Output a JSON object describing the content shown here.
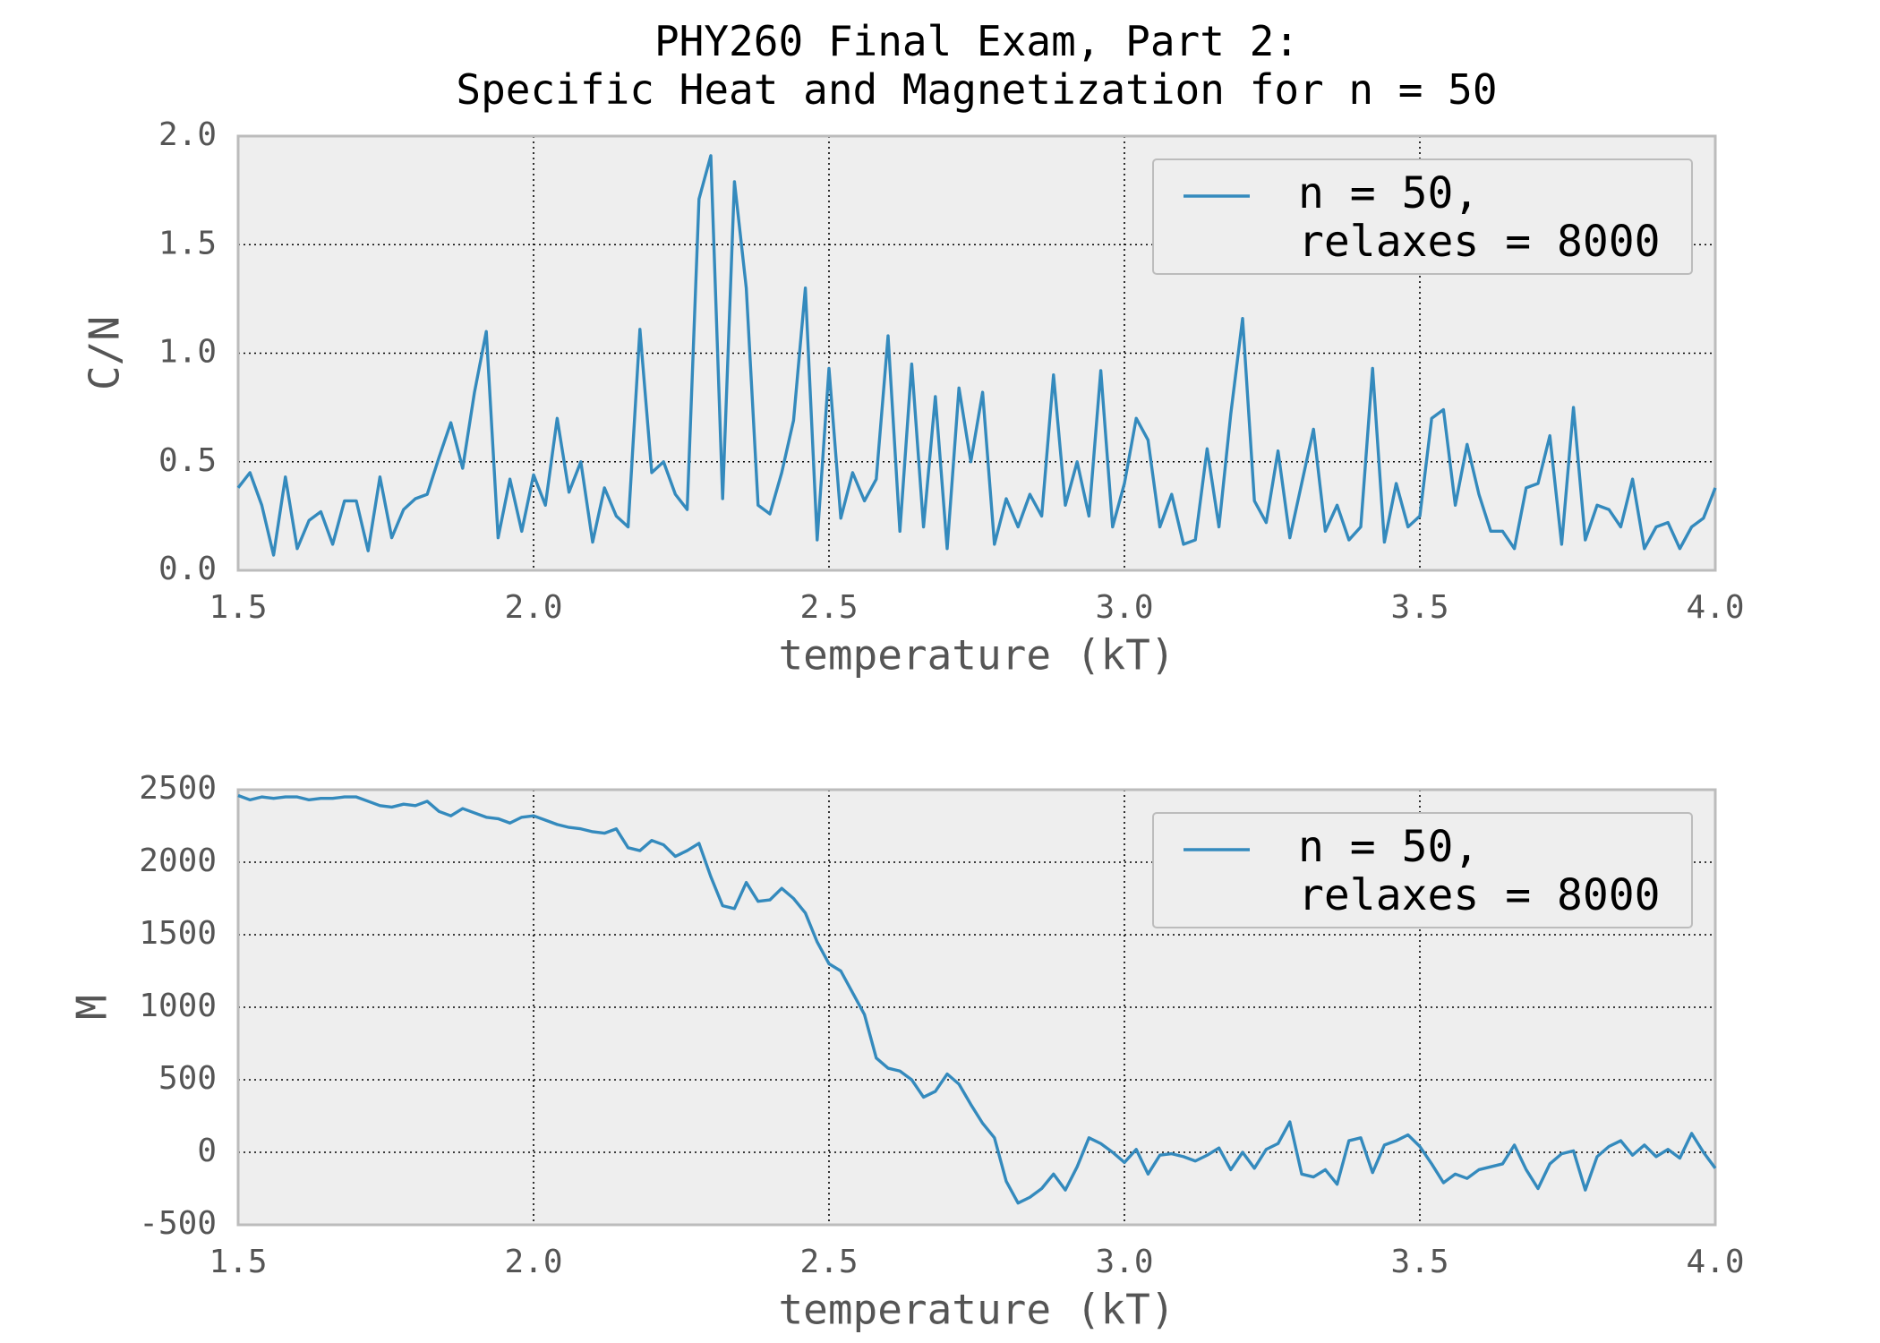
{
  "chart_data": [
    {
      "type": "line",
      "title": "PHY260 Final Exam, Part 2:\nSpecific Heat and Magnetization for n = 50",
      "xlabel": "temperature (kT)",
      "ylabel": "C/N",
      "grid": true,
      "legend": "upper right",
      "xlim": [
        1.5,
        4.0
      ],
      "ylim": [
        0,
        2.0
      ],
      "xticks": [
        1.5,
        {
          "value": 2,
          "label": "2.0"
        },
        2.5,
        {
          "value": 3,
          "label": "3.0"
        },
        3.5,
        {
          "value": 4,
          "label": "4.0"
        }
      ],
      "yticks": [
        {
          "value": 0,
          "label": "0.0"
        },
        0.5,
        {
          "value": 1,
          "label": "1.0"
        },
        1.5,
        {
          "value": 2,
          "label": "2.0"
        }
      ],
      "x": [
        1.5,
        1.52,
        1.54,
        1.56,
        1.58,
        1.6,
        1.62,
        1.64,
        1.66,
        1.68,
        1.7,
        1.72,
        1.74,
        1.76,
        1.78,
        1.8,
        1.82,
        1.84,
        1.86,
        1.88,
        1.9,
        1.92,
        1.94,
        1.96,
        1.98,
        2.0,
        2.02,
        2.04,
        2.06,
        2.08,
        2.1,
        2.12,
        2.14,
        2.16,
        2.18,
        2.2,
        2.22,
        2.24,
        2.26,
        2.28,
        2.3,
        2.32,
        2.34,
        2.36,
        2.38,
        2.4,
        2.42,
        2.44,
        2.46,
        2.48,
        2.5,
        2.52,
        2.54,
        2.56,
        2.58,
        2.6,
        2.62,
        2.64,
        2.66,
        2.68,
        2.7,
        2.72,
        2.74,
        2.76,
        2.78,
        2.8,
        2.82,
        2.84,
        2.86,
        2.88,
        2.9,
        2.92,
        2.94,
        2.96,
        2.98,
        3.0,
        3.02,
        3.04,
        3.06,
        3.08,
        3.1,
        3.12,
        3.14,
        3.16,
        3.18,
        3.2,
        3.22,
        3.24,
        3.26,
        3.28,
        3.3,
        3.32,
        3.34,
        3.36,
        3.38,
        3.4,
        3.42,
        3.44,
        3.46,
        3.48,
        3.5,
        3.52,
        3.54,
        3.56,
        3.58,
        3.6,
        3.62,
        3.64,
        3.66,
        3.68,
        3.7,
        3.72,
        3.74,
        3.76,
        3.78,
        3.8,
        3.82,
        3.84,
        3.86,
        3.88,
        3.9,
        3.92,
        3.94,
        3.96,
        3.98,
        4.0
      ],
      "series": [
        {
          "name": "n = 50,\nrelaxes = 8000",
          "color": "#348abd",
          "values": [
            0.38,
            0.45,
            0.3,
            0.07,
            0.43,
            0.1,
            0.23,
            0.27,
            0.12,
            0.32,
            0.32,
            0.09,
            0.43,
            0.15,
            0.28,
            0.33,
            0.35,
            0.52,
            0.68,
            0.47,
            0.82,
            1.1,
            0.15,
            0.42,
            0.18,
            0.44,
            0.3,
            0.7,
            0.36,
            0.5,
            0.13,
            0.38,
            0.25,
            0.2,
            1.11,
            0.45,
            0.5,
            0.35,
            0.28,
            1.71,
            1.91,
            0.33,
            1.79,
            1.3,
            0.3,
            0.26,
            0.45,
            0.69,
            1.3,
            0.14,
            0.93,
            0.24,
            0.45,
            0.32,
            0.42,
            1.08,
            0.18,
            0.95,
            0.2,
            0.8,
            0.1,
            0.84,
            0.5,
            0.82,
            0.12,
            0.33,
            0.2,
            0.35,
            0.25,
            0.9,
            0.3,
            0.5,
            0.25,
            0.92,
            0.2,
            0.4,
            0.7,
            0.6,
            0.2,
            0.35,
            0.12,
            0.14,
            0.56,
            0.2,
            0.72,
            1.16,
            0.32,
            0.22,
            0.55,
            0.15,
            0.4,
            0.65,
            0.18,
            0.3,
            0.14,
            0.2,
            0.93,
            0.13,
            0.4,
            0.2,
            0.25,
            0.7,
            0.74,
            0.3,
            0.58,
            0.35,
            0.18,
            0.18,
            0.1,
            0.38,
            0.4,
            0.62,
            0.12,
            0.75,
            0.14,
            0.3,
            0.28,
            0.2,
            0.42,
            0.1,
            0.2,
            0.22,
            0.1,
            0.2,
            0.24,
            0.38
          ]
        }
      ]
    },
    {
      "type": "line",
      "xlabel": "temperature (kT)",
      "ylabel": "M",
      "grid": true,
      "legend": "upper right",
      "xlim": [
        1.5,
        4.0
      ],
      "ylim": [
        -500,
        2500
      ],
      "xticks": [
        1.5,
        {
          "value": 2,
          "label": "2.0"
        },
        2.5,
        {
          "value": 3,
          "label": "3.0"
        },
        3.5,
        {
          "value": 4,
          "label": "4.0"
        }
      ],
      "yticks": [
        -500,
        0,
        500,
        1000,
        1500,
        2000,
        2500
      ],
      "x": [
        1.5,
        1.52,
        1.54,
        1.56,
        1.58,
        1.6,
        1.62,
        1.64,
        1.66,
        1.68,
        1.7,
        1.72,
        1.74,
        1.76,
        1.78,
        1.8,
        1.82,
        1.84,
        1.86,
        1.88,
        1.9,
        1.92,
        1.94,
        1.96,
        1.98,
        2.0,
        2.02,
        2.04,
        2.06,
        2.08,
        2.1,
        2.12,
        2.14,
        2.16,
        2.18,
        2.2,
        2.22,
        2.24,
        2.26,
        2.28,
        2.3,
        2.32,
        2.34,
        2.36,
        2.38,
        2.4,
        2.42,
        2.44,
        2.46,
        2.48,
        2.5,
        2.52,
        2.54,
        2.56,
        2.58,
        2.6,
        2.62,
        2.64,
        2.66,
        2.68,
        2.7,
        2.72,
        2.74,
        2.76,
        2.78,
        2.8,
        2.82,
        2.84,
        2.86,
        2.88,
        2.9,
        2.92,
        2.94,
        2.96,
        2.98,
        3.0,
        3.02,
        3.04,
        3.06,
        3.08,
        3.1,
        3.12,
        3.14,
        3.16,
        3.18,
        3.2,
        3.22,
        3.24,
        3.26,
        3.28,
        3.3,
        3.32,
        3.34,
        3.36,
        3.38,
        3.4,
        3.42,
        3.44,
        3.46,
        3.48,
        3.5,
        3.52,
        3.54,
        3.56,
        3.58,
        3.6,
        3.62,
        3.64,
        3.66,
        3.68,
        3.7,
        3.72,
        3.74,
        3.76,
        3.78,
        3.8,
        3.82,
        3.84,
        3.86,
        3.88,
        3.9,
        3.92,
        3.94,
        3.96,
        3.98,
        4.0
      ],
      "series": [
        {
          "name": "n = 50,\nrelaxes = 8000",
          "color": "#348abd",
          "values": [
            2460,
            2430,
            2450,
            2440,
            2450,
            2450,
            2430,
            2440,
            2440,
            2450,
            2450,
            2420,
            2390,
            2380,
            2400,
            2390,
            2420,
            2350,
            2320,
            2370,
            2340,
            2310,
            2300,
            2270,
            2310,
            2320,
            2290,
            2260,
            2240,
            2230,
            2210,
            2200,
            2230,
            2100,
            2080,
            2150,
            2120,
            2040,
            2080,
            2130,
            1900,
            1700,
            1680,
            1860,
            1730,
            1740,
            1820,
            1750,
            1650,
            1450,
            1300,
            1250,
            1100,
            950,
            650,
            580,
            560,
            500,
            380,
            420,
            540,
            470,
            330,
            200,
            100,
            -200,
            -350,
            -310,
            -250,
            -150,
            -260,
            -100,
            100,
            60,
            0,
            -70,
            20,
            -150,
            -20,
            -10,
            -30,
            -60,
            -20,
            30,
            -120,
            0,
            -110,
            20,
            60,
            210,
            -150,
            -170,
            -120,
            -220,
            80,
            100,
            -140,
            50,
            80,
            120,
            40,
            -80,
            -210,
            -150,
            -180,
            -120,
            -100,
            -80,
            50,
            -120,
            -250,
            -80,
            -10,
            10,
            -260,
            -30,
            40,
            80,
            -20,
            50,
            -30,
            20,
            -40,
            130,
            0,
            -110
          ]
        }
      ]
    }
  ]
}
